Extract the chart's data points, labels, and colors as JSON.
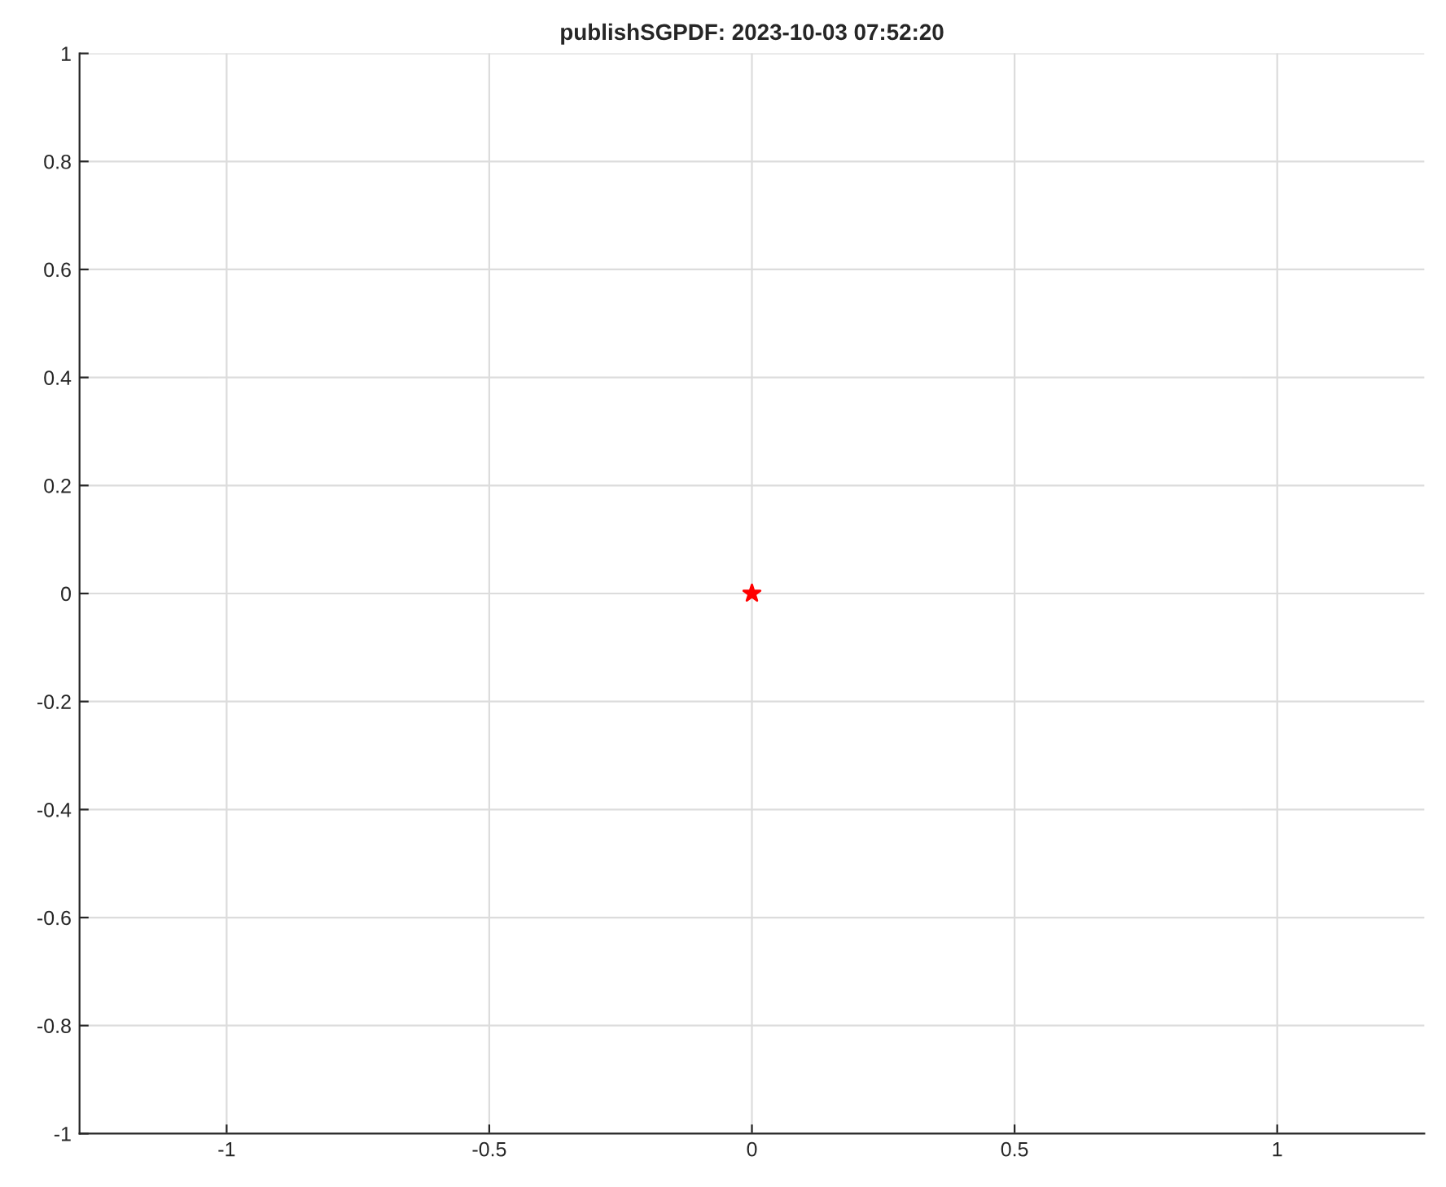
{
  "chart_data": {
    "type": "scatter",
    "title": "publishSGPDF: 2023-10-03 07:52:20",
    "x": [
      0
    ],
    "series": [
      {
        "color": "#ff0000",
        "values": [
          0
        ]
      }
    ],
    "marker": "star",
    "xlim": [
      -1.28,
      1.28
    ],
    "xticks": [
      -1,
      -0.5,
      0,
      0.5,
      1
    ],
    "ylim": [
      -1,
      1
    ],
    "yticks": [
      -1,
      -0.8,
      -0.6,
      -0.4,
      -0.2,
      0,
      0.2,
      0.4,
      0.6,
      0.8,
      1
    ],
    "grid": true
  }
}
